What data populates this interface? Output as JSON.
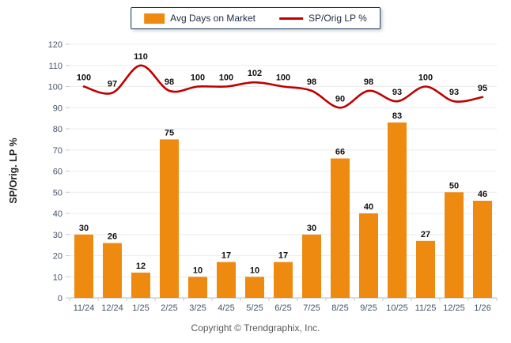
{
  "legend": {
    "bar_label": "Avg Days on Market",
    "line_label": "SP/Orig LP %"
  },
  "footer": {
    "copyright": "Copyright © Trendgraphix, Inc."
  },
  "colors": {
    "bar": "#EE8A10",
    "line": "#C00000",
    "legend_border": "#17375E",
    "tick_text": "#44546A",
    "value_label": "#111111",
    "gridline": "#ECECEC",
    "axis_line": "#B9B9B9"
  },
  "chart_data": {
    "type": "bar",
    "title": "",
    "xlabel": "",
    "ylabel": "SP/Orig. LP %",
    "ylim": [
      0,
      120
    ],
    "yticks": [
      0,
      10,
      20,
      30,
      40,
      50,
      60,
      70,
      80,
      90,
      100,
      110,
      120
    ],
    "grid": true,
    "legend_position": "top",
    "categories": [
      "11/24",
      "12/24",
      "1/25",
      "2/25",
      "3/25",
      "4/25",
      "5/25",
      "6/25",
      "7/25",
      "8/25",
      "9/25",
      "10/25",
      "11/25",
      "12/25",
      "1/26"
    ],
    "series": [
      {
        "name": "Avg Days on Market",
        "type": "bar",
        "color": "#EE8A10",
        "values": [
          30,
          26,
          12,
          75,
          10,
          17,
          10,
          17,
          30,
          66,
          40,
          83,
          27,
          50,
          46
        ]
      },
      {
        "name": "SP/Orig LP %",
        "type": "line",
        "color": "#C00000",
        "values": [
          100,
          97,
          110,
          98,
          100,
          100,
          102,
          100,
          98,
          90,
          98,
          93,
          100,
          93,
          95
        ]
      }
    ]
  }
}
